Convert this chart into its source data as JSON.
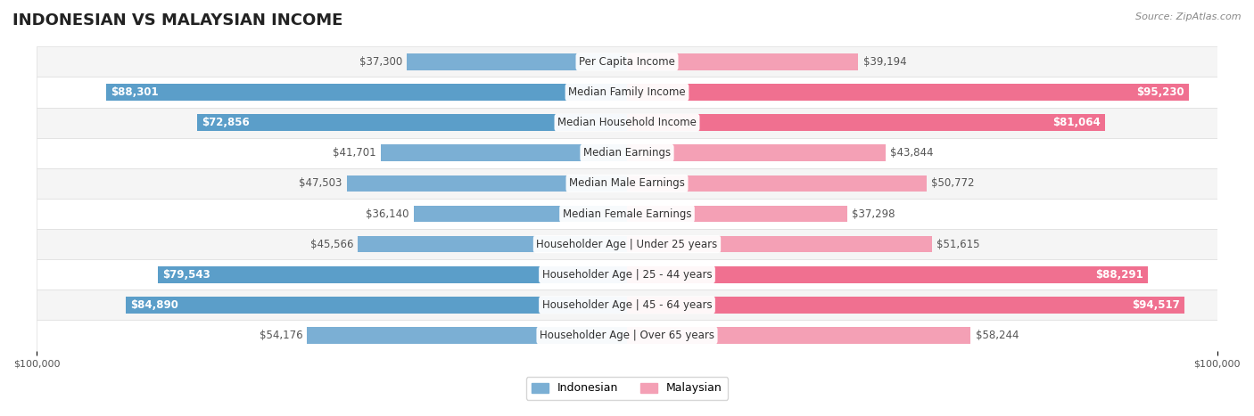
{
  "title": "INDONESIAN VS MALAYSIAN INCOME",
  "source": "Source: ZipAtlas.com",
  "categories": [
    "Per Capita Income",
    "Median Family Income",
    "Median Household Income",
    "Median Earnings",
    "Median Male Earnings",
    "Median Female Earnings",
    "Householder Age | Under 25 years",
    "Householder Age | 25 - 44 years",
    "Householder Age | 45 - 64 years",
    "Householder Age | Over 65 years"
  ],
  "indonesian_values": [
    37300,
    88301,
    72856,
    41701,
    47503,
    36140,
    45566,
    79543,
    84890,
    54176
  ],
  "malaysian_values": [
    39194,
    95230,
    81064,
    43844,
    50772,
    37298,
    51615,
    88291,
    94517,
    58244
  ],
  "indonesian_labels": [
    "$37,300",
    "$88,301",
    "$72,856",
    "$41,701",
    "$47,503",
    "$36,140",
    "$45,566",
    "$79,543",
    "$84,890",
    "$54,176"
  ],
  "malaysian_labels": [
    "$39,194",
    "$95,230",
    "$81,064",
    "$43,844",
    "$50,772",
    "$37,298",
    "$51,615",
    "$88,291",
    "$94,517",
    "$58,244"
  ],
  "max_value": 100000,
  "indonesian_color": "#7bafd4",
  "malaysian_color": "#f4a0b5",
  "indonesian_color_solid": "#5b9ec9",
  "malaysian_color_solid": "#f07090",
  "row_bg_even": "#f5f5f5",
  "row_bg_odd": "#ffffff",
  "label_bg": "#ffffff",
  "bar_height": 0.55,
  "title_fontsize": 13,
  "label_fontsize": 8.5,
  "cat_fontsize": 8.5,
  "legend_fontsize": 9,
  "axis_label_fontsize": 8
}
